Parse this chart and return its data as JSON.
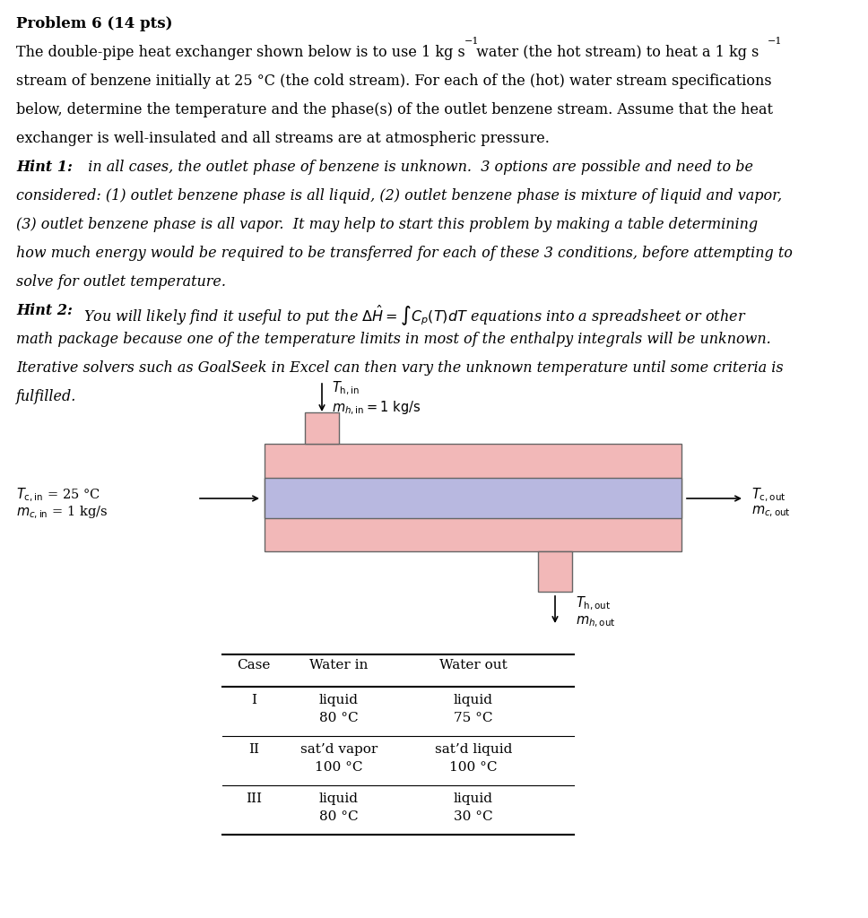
{
  "bg_color": "#ffffff",
  "pink_color": "#f2b8b8",
  "purple_color": "#b8b8e0",
  "title": "Problem 6 (14 pts)",
  "table_headers": [
    "Case",
    "Water in",
    "Water out"
  ],
  "table_rows": [
    [
      "I",
      "liquid",
      "80 °C",
      "liquid",
      "75 °C"
    ],
    [
      "II",
      "sat’d vapor",
      "100 °C",
      "sat’d liquid",
      "100 °C"
    ],
    [
      "III",
      "liquid",
      "80 °C",
      "liquid",
      "30 °C"
    ]
  ]
}
